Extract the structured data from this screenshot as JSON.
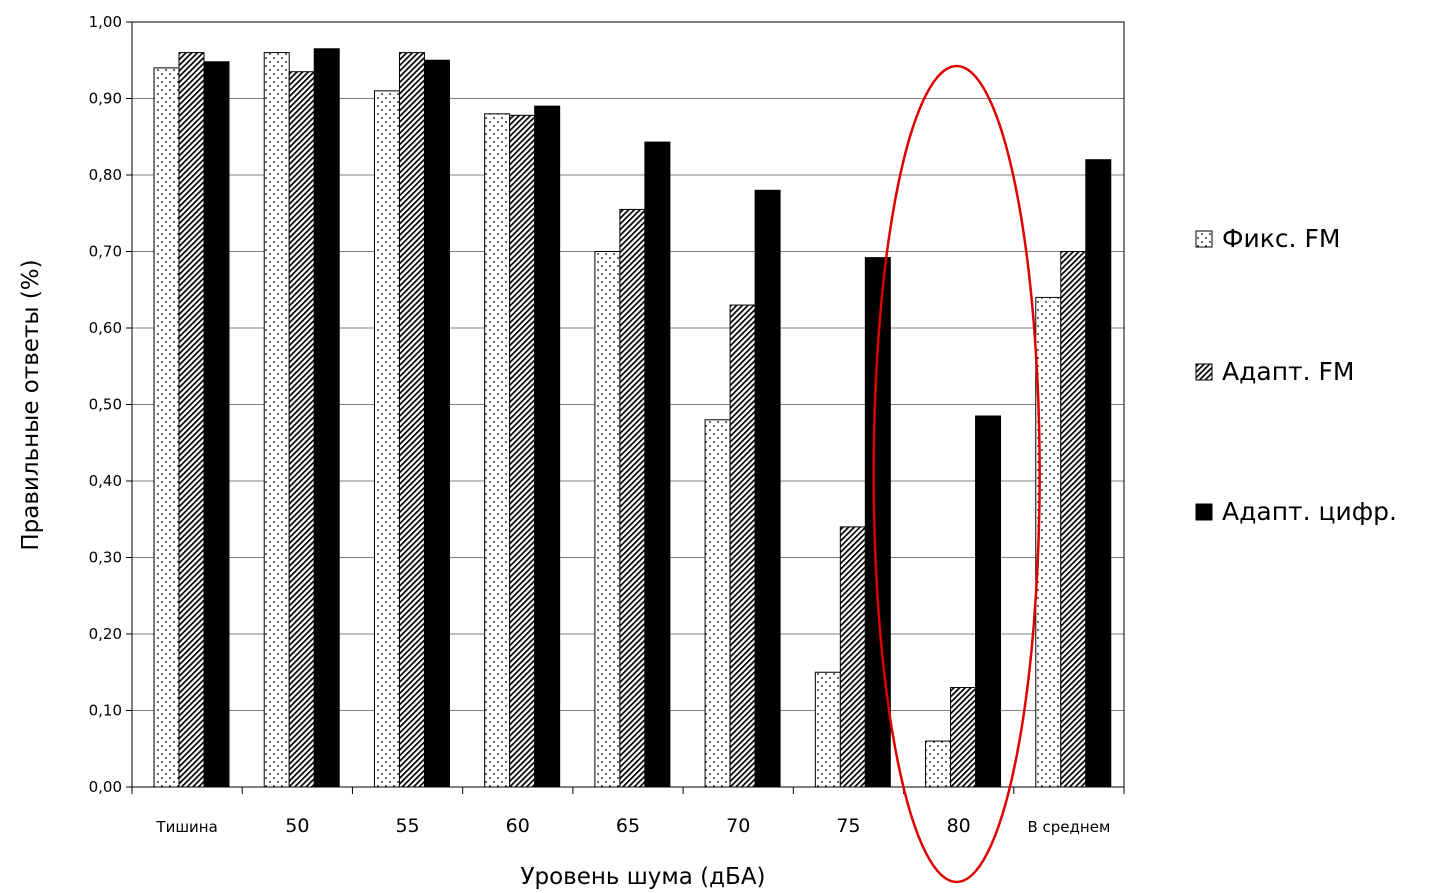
{
  "chart_data": {
    "type": "bar",
    "xlabel": "Уровень шума (дБА)",
    "ylabel": "Правильные ответы (%)",
    "ylim": [
      0,
      1
    ],
    "ytick_step": 0.1,
    "yticks": [
      "0,00",
      "0,10",
      "0,20",
      "0,30",
      "0,40",
      "0,50",
      "0,60",
      "0,70",
      "0,80",
      "0,90",
      "1,00"
    ],
    "grid": true,
    "legend_position": "right",
    "categories": [
      "Тишина",
      "50",
      "55",
      "60",
      "65",
      "70",
      "75",
      "80",
      "В среднем"
    ],
    "series": [
      {
        "name": "Фикс. FM",
        "pattern": "dots",
        "values": [
          0.94,
          0.96,
          0.91,
          0.88,
          0.7,
          0.48,
          0.15,
          0.06,
          0.64
        ]
      },
      {
        "name": "Адапт. FM",
        "pattern": "hatch",
        "values": [
          0.96,
          0.935,
          0.96,
          0.878,
          0.755,
          0.63,
          0.34,
          0.13,
          0.7
        ]
      },
      {
        "name": "Адапт. цифр.",
        "pattern": "solid",
        "values": [
          0.948,
          0.965,
          0.95,
          0.89,
          0.843,
          0.78,
          0.692,
          0.485,
          0.82
        ]
      }
    ],
    "highlight": {
      "category": "80",
      "shape": "ellipse",
      "color": "#e00000"
    },
    "colors": {
      "bar_outline": "#000000",
      "solid_fill": "#000000",
      "grid": "#808080",
      "highlight": "#e00000"
    }
  }
}
